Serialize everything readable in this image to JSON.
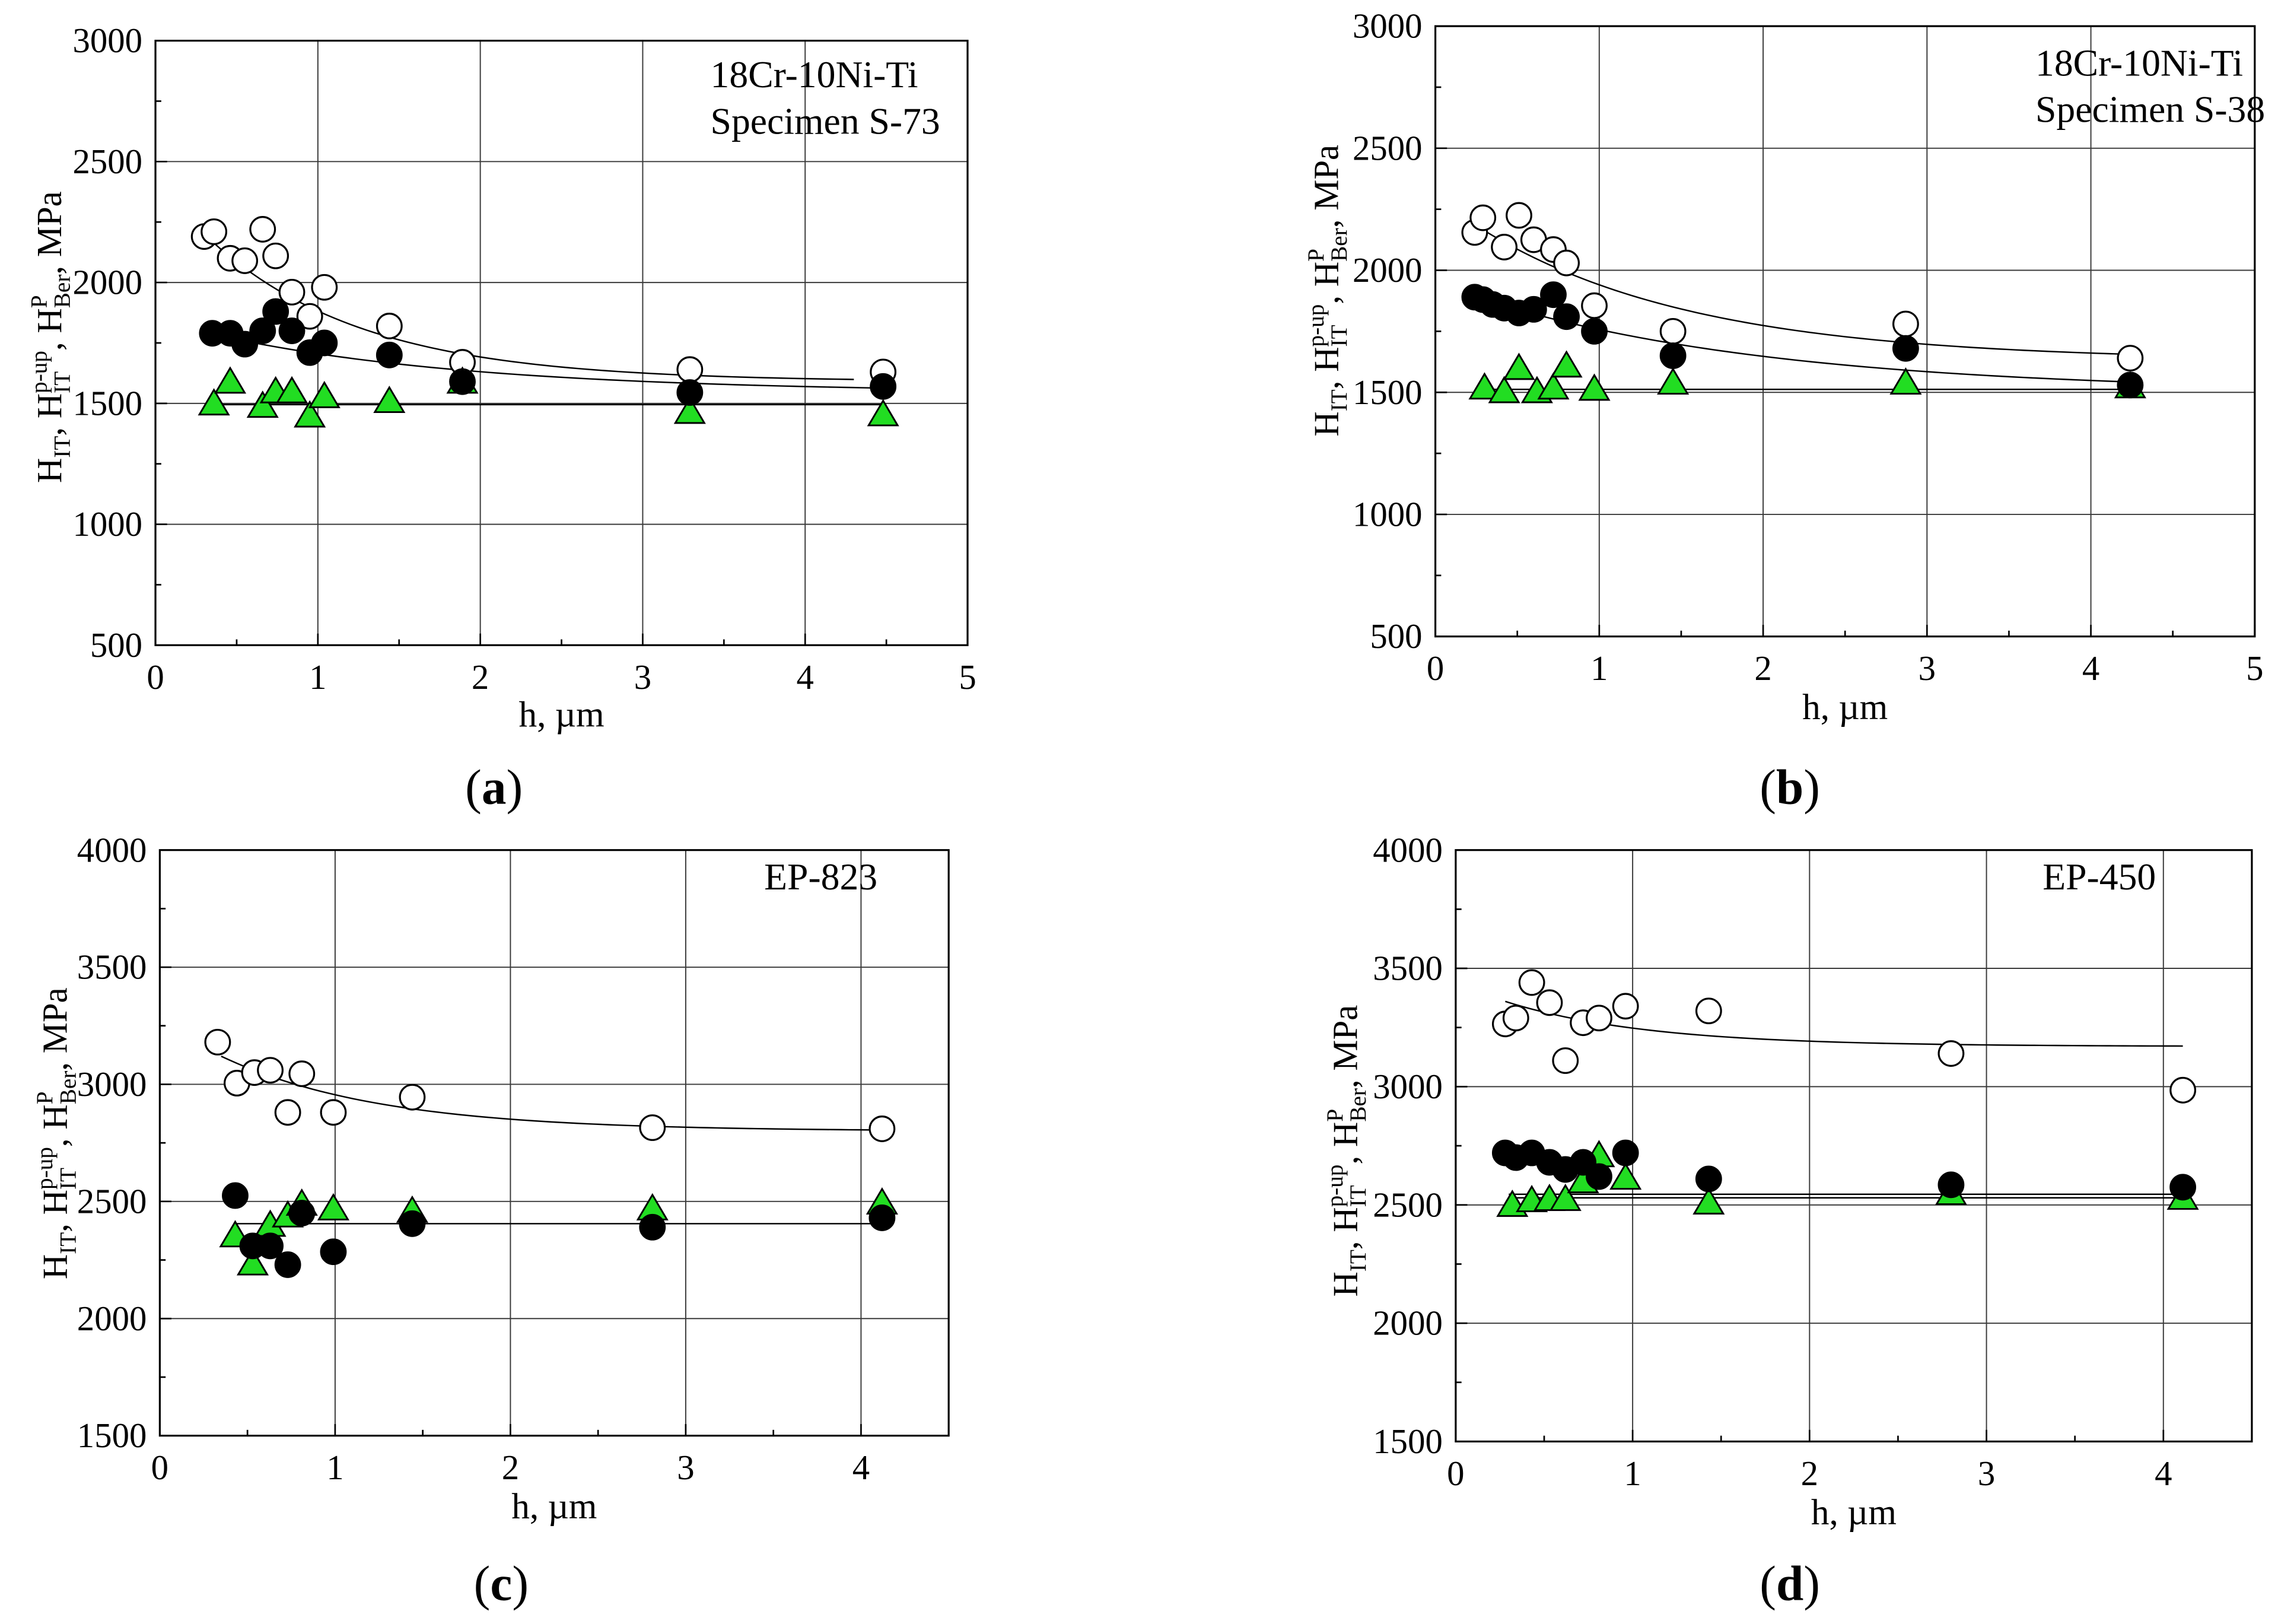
{
  "chart_data": [
    {
      "type": "scatter",
      "caption": {
        "open": "(",
        "letter": "a",
        "close": ")"
      },
      "annotation": [
        "18Cr-10Ni-Ti",
        "Specimen S-73"
      ],
      "xlabel": "h, µm",
      "ylabel_parts": [
        {
          "text": "H",
          "role": "base"
        },
        {
          "text": "IT",
          "role": "sub"
        },
        {
          "text": ", H",
          "role": "base"
        },
        {
          "text": "IT",
          "role": "sub"
        },
        {
          "text": "p-up",
          "role": "sup"
        },
        {
          "text": ", H",
          "role": "base"
        },
        {
          "text": "Ber",
          "role": "sub"
        },
        {
          "text": "P",
          "role": "sup"
        },
        {
          "text": ", MPa",
          "role": "base"
        }
      ],
      "xlim": [
        0,
        5
      ],
      "ylim": [
        500,
        3000
      ],
      "xticks": [
        0,
        1,
        2,
        3,
        4,
        5
      ],
      "yticks": [
        500,
        1000,
        1500,
        2000,
        2500,
        3000
      ],
      "grid": true,
      "series": [
        {
          "marker": "circle-open",
          "fill": "#ffffff",
          "stroke": "#000000",
          "x": [
            0.3,
            0.36,
            0.46,
            0.55,
            0.66,
            0.74,
            0.84,
            0.95,
            1.04,
            1.44,
            1.89,
            3.29,
            4.48
          ],
          "y": [
            2190,
            2210,
            2100,
            2090,
            2220,
            2110,
            1960,
            1860,
            1980,
            1820,
            1670,
            1640,
            1630
          ]
        },
        {
          "marker": "triangle",
          "fill": "#22dd22",
          "stroke": "#000000",
          "x": [
            0.36,
            0.46,
            0.66,
            0.74,
            0.84,
            0.95,
            1.04,
            1.44,
            1.89,
            3.29,
            4.48
          ],
          "y": [
            1490,
            1580,
            1480,
            1540,
            1540,
            1440,
            1520,
            1500,
            1580,
            1455,
            1445
          ]
        },
        {
          "marker": "circle-filled",
          "fill": "#000000",
          "stroke": "#000000",
          "x": [
            0.35,
            0.46,
            0.55,
            0.66,
            0.74,
            0.84,
            0.95,
            1.04,
            1.44,
            1.89,
            3.29,
            4.48
          ],
          "y": [
            1790,
            1790,
            1745,
            1800,
            1880,
            1800,
            1710,
            1750,
            1700,
            1590,
            1545,
            1570
          ]
        }
      ],
      "fits": [
        {
          "model": "exp-decay",
          "c": 1590,
          "a": 837,
          "t": 0.95,
          "x_range": [
            0.3,
            4.3
          ]
        },
        {
          "model": "exp-decay",
          "c": 1545,
          "a": 300,
          "t": 1.6,
          "x_range": [
            0.35,
            4.5
          ]
        },
        {
          "model": "constant",
          "c": 1495,
          "x_range": [
            0.35,
            4.5
          ]
        }
      ]
    },
    {
      "type": "scatter",
      "caption": {
        "open": "(",
        "letter": "b",
        "close": ")"
      },
      "annotation": [
        "18Cr-10Ni-Ti",
        "Specimen S-38"
      ],
      "xlabel": "h, µm",
      "ylabel_parts": [
        {
          "text": "H",
          "role": "base"
        },
        {
          "text": "IT",
          "role": "sub"
        },
        {
          "text": ", H",
          "role": "base"
        },
        {
          "text": "IT",
          "role": "sub"
        },
        {
          "text": "p-up",
          "role": "sup"
        },
        {
          "text": ", H",
          "role": "base"
        },
        {
          "text": "Ber",
          "role": "sub"
        },
        {
          "text": "P",
          "role": "sup"
        },
        {
          "text": ", MPa",
          "role": "base"
        }
      ],
      "xlim": [
        0,
        5
      ],
      "ylim": [
        500,
        3000
      ],
      "xticks": [
        0,
        1,
        2,
        3,
        4,
        5
      ],
      "yticks": [
        500,
        1000,
        1500,
        2000,
        2500,
        3000
      ],
      "grid": true,
      "series": [
        {
          "marker": "circle-open",
          "fill": "#ffffff",
          "stroke": "#000000",
          "x": [
            0.24,
            0.29,
            0.42,
            0.51,
            0.6,
            0.72,
            0.8,
            0.97,
            1.45,
            2.87,
            4.24
          ],
          "y": [
            2155,
            2215,
            2095,
            2225,
            2125,
            2085,
            2030,
            1855,
            1750,
            1780,
            1640
          ]
        },
        {
          "marker": "triangle",
          "fill": "#22dd22",
          "stroke": "#000000",
          "x": [
            0.3,
            0.42,
            0.51,
            0.62,
            0.72,
            0.8,
            0.97,
            1.45,
            2.87,
            4.24
          ],
          "y": [
            1510,
            1495,
            1590,
            1495,
            1510,
            1600,
            1505,
            1530,
            1530,
            1515
          ]
        },
        {
          "marker": "circle-filled",
          "fill": "#000000",
          "stroke": "#000000",
          "x": [
            0.24,
            0.29,
            0.35,
            0.42,
            0.51,
            0.6,
            0.72,
            0.8,
            0.97,
            1.45,
            2.87,
            4.24
          ],
          "y": [
            1890,
            1880,
            1860,
            1845,
            1825,
            1840,
            1900,
            1810,
            1750,
            1650,
            1680,
            1530
          ]
        }
      ],
      "fits": [
        {
          "model": "exp-decay",
          "c": 1630,
          "a": 670,
          "t": 1.3,
          "x_range": [
            0.25,
            4.24
          ]
        },
        {
          "model": "exp-decay",
          "c": 1500,
          "a": 448,
          "t": 1.8,
          "x_range": [
            0.25,
            4.24
          ]
        },
        {
          "model": "constant",
          "c": 1512,
          "x_range": [
            0.3,
            4.3
          ]
        }
      ]
    },
    {
      "type": "scatter",
      "caption": {
        "open": "(",
        "letter": "c",
        "close": ")"
      },
      "annotation": [
        "EP-823"
      ],
      "xlabel": "h, µm",
      "ylabel_parts": [
        {
          "text": "H",
          "role": "base"
        },
        {
          "text": "IT",
          "role": "sub"
        },
        {
          "text": ", H",
          "role": "base"
        },
        {
          "text": "IT",
          "role": "sub"
        },
        {
          "text": "p-up",
          "role": "sup"
        },
        {
          "text": ", H",
          "role": "base"
        },
        {
          "text": "Ber",
          "role": "sub"
        },
        {
          "text": "P",
          "role": "sup"
        },
        {
          "text": ", MPa",
          "role": "base"
        }
      ],
      "xlim": [
        0,
        4.5
      ],
      "ylim": [
        1500,
        4000
      ],
      "xticks": [
        0,
        1,
        2,
        3,
        4
      ],
      "yticks": [
        1500,
        2000,
        2500,
        3000,
        3500,
        4000
      ],
      "grid": true,
      "series": [
        {
          "marker": "circle-open",
          "fill": "#ffffff",
          "stroke": "#000000",
          "x": [
            0.33,
            0.44,
            0.54,
            0.63,
            0.73,
            0.81,
            0.99,
            1.44,
            2.81,
            4.12
          ],
          "y": [
            3180,
            3005,
            3050,
            3060,
            2880,
            3045,
            2880,
            2945,
            2815,
            2810
          ]
        },
        {
          "marker": "triangle",
          "fill": "#22dd22",
          "stroke": "#000000",
          "x": [
            0.43,
            0.53,
            0.63,
            0.73,
            0.81,
            0.99,
            1.44,
            2.81,
            4.12
          ],
          "y": [
            2345,
            2225,
            2390,
            2430,
            2480,
            2460,
            2450,
            2460,
            2485
          ]
        },
        {
          "marker": "circle-filled",
          "fill": "#000000",
          "stroke": "#000000",
          "x": [
            0.43,
            0.53,
            0.63,
            0.73,
            0.81,
            0.99,
            1.44,
            2.81,
            4.12
          ],
          "y": [
            2525,
            2310,
            2310,
            2230,
            2450,
            2285,
            2405,
            2390,
            2430
          ]
        }
      ],
      "fits": [
        {
          "model": "exp-decay",
          "c": 2800,
          "a": 472,
          "t": 0.9,
          "x_range": [
            0.35,
            4.12
          ]
        },
        {
          "model": "constant",
          "c": 2405,
          "x_range": [
            0.43,
            4.12
          ]
        }
      ]
    },
    {
      "type": "scatter",
      "caption": {
        "open": "(",
        "letter": "d",
        "close": ")"
      },
      "annotation": [
        "EP-450"
      ],
      "xlabel": "h, µm",
      "ylabel_parts": [
        {
          "text": "H",
          "role": "base"
        },
        {
          "text": "IT",
          "role": "sub"
        },
        {
          "text": ", H",
          "role": "base"
        },
        {
          "text": "IT",
          "role": "sub"
        },
        {
          "text": "p-up",
          "role": "sup"
        },
        {
          "text": ", H",
          "role": "base"
        },
        {
          "text": "Ber",
          "role": "sub"
        },
        {
          "text": "P",
          "role": "sup"
        },
        {
          "text": ", MPa",
          "role": "base"
        }
      ],
      "xlim": [
        0,
        4.5
      ],
      "ylim": [
        1500,
        4000
      ],
      "xticks": [
        0,
        1,
        2,
        3,
        4
      ],
      "yticks": [
        1500,
        2000,
        2500,
        3000,
        3500,
        4000
      ],
      "grid": true,
      "series": [
        {
          "marker": "circle-open",
          "fill": "#ffffff",
          "stroke": "#000000",
          "x": [
            0.28,
            0.34,
            0.43,
            0.53,
            0.62,
            0.72,
            0.81,
            0.96,
            1.43,
            2.8,
            4.11
          ],
          "y": [
            3265,
            3290,
            3440,
            3355,
            3110,
            3270,
            3290,
            3340,
            3320,
            3140,
            2985
          ]
        },
        {
          "marker": "triangle",
          "fill": "#22dd22",
          "stroke": "#000000",
          "x": [
            0.32,
            0.43,
            0.53,
            0.62,
            0.72,
            0.81,
            0.96,
            1.43,
            2.8,
            4.11
          ],
          "y": [
            2490,
            2510,
            2515,
            2515,
            2590,
            2700,
            2605,
            2500,
            2540,
            2520
          ]
        },
        {
          "marker": "circle-filled",
          "fill": "#000000",
          "stroke": "#000000",
          "x": [
            0.28,
            0.34,
            0.43,
            0.53,
            0.62,
            0.72,
            0.81,
            0.96,
            1.43,
            2.8,
            4.11
          ],
          "y": [
            2720,
            2700,
            2720,
            2680,
            2650,
            2680,
            2620,
            2720,
            2610,
            2585,
            2575
          ]
        }
      ],
      "fits": [
        {
          "model": "exp-decay",
          "c": 3170,
          "a": 270,
          "t": 0.8,
          "x_range": [
            0.28,
            4.11
          ]
        },
        {
          "model": "constant",
          "c": 2545,
          "x_range": [
            0.3,
            4.11
          ]
        },
        {
          "model": "constant",
          "c": 2530,
          "x_range": [
            0.3,
            4.11
          ]
        }
      ]
    }
  ]
}
